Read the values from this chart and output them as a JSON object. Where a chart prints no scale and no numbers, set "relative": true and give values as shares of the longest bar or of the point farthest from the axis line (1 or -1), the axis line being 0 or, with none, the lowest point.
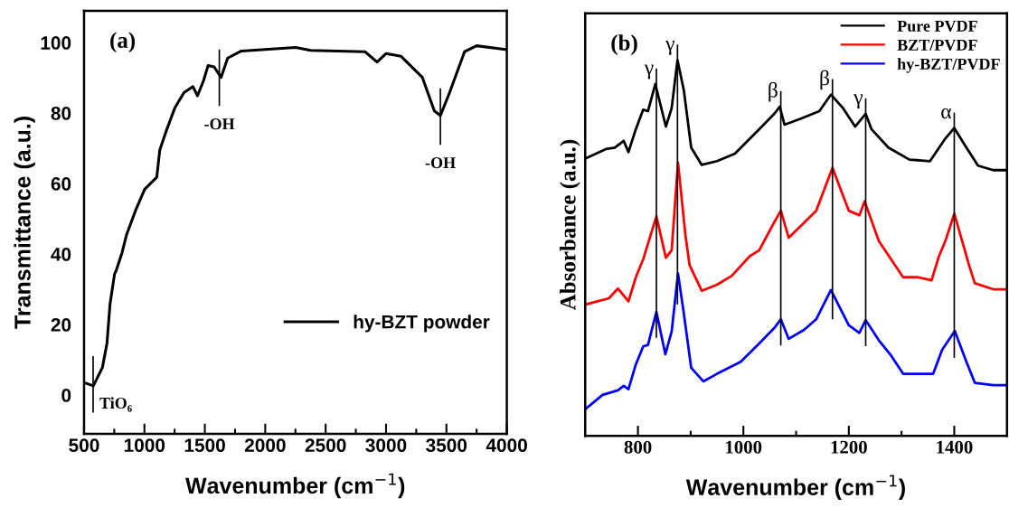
{
  "chart_data": [
    {
      "type": "line",
      "xlabel": "Wavenumber (cm$^{−1}$)",
      "ylabel": "Transmittance (a.u.)",
      "xlim": [
        500,
        4000
      ],
      "ylim": [
        -11,
        109
      ],
      "xticks": [
        500,
        {
          "value": 750,
          "label": null
        },
        1000,
        {
          "value": 1250,
          "label": null
        },
        1500,
        {
          "value": 1750,
          "label": null
        },
        2000,
        {
          "value": 2250,
          "label": null
        },
        2500,
        {
          "value": 2750,
          "label": null
        },
        3000,
        {
          "value": 3250,
          "label": null
        },
        3500,
        {
          "value": 3750,
          "label": null
        },
        4000
      ],
      "yticks": [
        0,
        20,
        40,
        60,
        80,
        100
      ],
      "grid": false,
      "legend": "lower right",
      "marker": "none",
      "line_style": "solid",
      "annotations": [
        "(a)",
        {
          "text": "-OH",
          "x": 1620,
          "y": 90
        },
        {
          "text": "-OH",
          "x": 3450,
          "y": 79
        },
        {
          "text": "TiO₆",
          "x": 575,
          "y": 3
        }
      ],
      "series": [
        {
          "name": "hy-BZT powder",
          "color": "#000000",
          "x": [
            502,
            577,
            652,
            690,
            715,
            753,
            765,
            815,
            852,
            927,
            1002,
            1102,
            1127,
            1177,
            1252,
            1327,
            1402,
            1439,
            1489,
            1527,
            1577,
            1634,
            1689,
            1802,
            2252,
            2376,
            2826,
            2926,
            3001,
            3125,
            3301,
            3400,
            3450,
            3526,
            3650,
            3750,
            4000
          ],
          "values": [
            3.5,
            2.6,
            7.8,
            14.7,
            25.8,
            34.4,
            35.2,
            40.4,
            45.5,
            52.4,
            58.4,
            61.8,
            69.5,
            74.6,
            81.5,
            85.8,
            87.5,
            84.9,
            89.2,
            93.5,
            93.1,
            90.1,
            95.6,
            97.6,
            98.6,
            97.8,
            97.4,
            94.5,
            96.9,
            96.1,
            90.1,
            80.6,
            79.3,
            85.8,
            97.4,
            99.1,
            98
          ]
        }
      ]
    },
    {
      "type": "line",
      "xlabel": "Wavenumber (cm$^{−1}$)",
      "ylabel": "Absorbance (a.u.)",
      "relative": true,
      "tick_labels": "x",
      "xlim": [
        700,
        1500
      ],
      "xticks": [
        800,
        {
          "value": 900,
          "label": null
        },
        1000,
        {
          "value": 1100,
          "label": null
        },
        1200,
        {
          "value": 1300,
          "label": null
        },
        1400
      ],
      "grid": false,
      "legend": "upper right",
      "marker": "none",
      "line_style": "solid",
      "annotations": [
        "(b)",
        {
          "text": "γ",
          "x": 835,
          "y": 0.936
        },
        {
          "text": "γ",
          "x": 875,
          "y": 1.0
        },
        {
          "text": "β",
          "x": 1071,
          "y": 0.876
        },
        {
          "text": "β",
          "x": 1169,
          "y": 0.908
        },
        {
          "text": "γ",
          "x": 1232,
          "y": 0.857
        },
        {
          "text": "α",
          "x": 1400,
          "y": 0.819
        }
      ],
      "series": [
        {
          "name": "Pure PVDF",
          "color": "#000000",
          "x": [
            702,
            739,
            756,
            773,
            782,
            796,
            810,
            819,
            833,
            853,
            864,
            875,
            887,
            901,
            921,
            950,
            984,
            1030,
            1058,
            1069,
            1078,
            1109,
            1144,
            1166,
            1189,
            1212,
            1232,
            1243,
            1275,
            1315,
            1354,
            1383,
            1400,
            1423,
            1445,
            1474,
            1500
          ],
          "values": [
            0.739,
            0.763,
            0.767,
            0.785,
            0.755,
            0.816,
            0.868,
            0.864,
            0.936,
            0.823,
            0.872,
            1.0,
            0.92,
            0.767,
            0.721,
            0.731,
            0.751,
            0.816,
            0.856,
            0.876,
            0.828,
            0.844,
            0.864,
            0.908,
            0.872,
            0.823,
            0.857,
            0.816,
            0.767,
            0.735,
            0.731,
            0.791,
            0.819,
            0.767,
            0.719,
            0.707,
            0.707
          ]
        },
        {
          "name": "BZT/PVDF",
          "color": "#ff0000",
          "x": [
            702,
            745,
            762,
            782,
            796,
            810,
            835,
            853,
            864,
            876,
            890,
            898,
            921,
            950,
            978,
            1012,
            1030,
            1058,
            1071,
            1086,
            1115,
            1138,
            1169,
            1200,
            1220,
            1230,
            1257,
            1280,
            1303,
            1331,
            1357,
            1371,
            1383,
            1400,
            1420,
            1428,
            1439,
            1474,
            1500
          ],
          "values": [
            0.35,
            0.366,
            0.392,
            0.358,
            0.422,
            0.47,
            0.584,
            0.474,
            0.494,
            0.727,
            0.535,
            0.454,
            0.386,
            0.402,
            0.426,
            0.478,
            0.494,
            0.567,
            0.599,
            0.527,
            0.567,
            0.599,
            0.713,
            0.599,
            0.587,
            0.624,
            0.518,
            0.47,
            0.422,
            0.422,
            0.414,
            0.478,
            0.518,
            0.591,
            0.494,
            0.454,
            0.406,
            0.39,
            0.39
          ]
        },
        {
          "name": "hy-BZT/PVDF",
          "color": "#0000ff",
          "x": [
            702,
            733,
            762,
            773,
            782,
            796,
            810,
            819,
            835,
            852,
            864,
            876,
            887,
            901,
            924,
            950,
            995,
            1030,
            1058,
            1071,
            1086,
            1115,
            1138,
            1166,
            1200,
            1220,
            1232,
            1257,
            1280,
            1303,
            1331,
            1360,
            1377,
            1401,
            1423,
            1439,
            1474,
            1500
          ],
          "values": [
            0.073,
            0.109,
            0.121,
            0.133,
            0.124,
            0.19,
            0.238,
            0.242,
            0.33,
            0.217,
            0.278,
            0.432,
            0.326,
            0.181,
            0.145,
            0.165,
            0.197,
            0.246,
            0.286,
            0.31,
            0.258,
            0.282,
            0.31,
            0.388,
            0.294,
            0.274,
            0.308,
            0.254,
            0.214,
            0.165,
            0.165,
            0.165,
            0.229,
            0.279,
            0.197,
            0.141,
            0.135,
            0.135
          ]
        }
      ]
    }
  ]
}
